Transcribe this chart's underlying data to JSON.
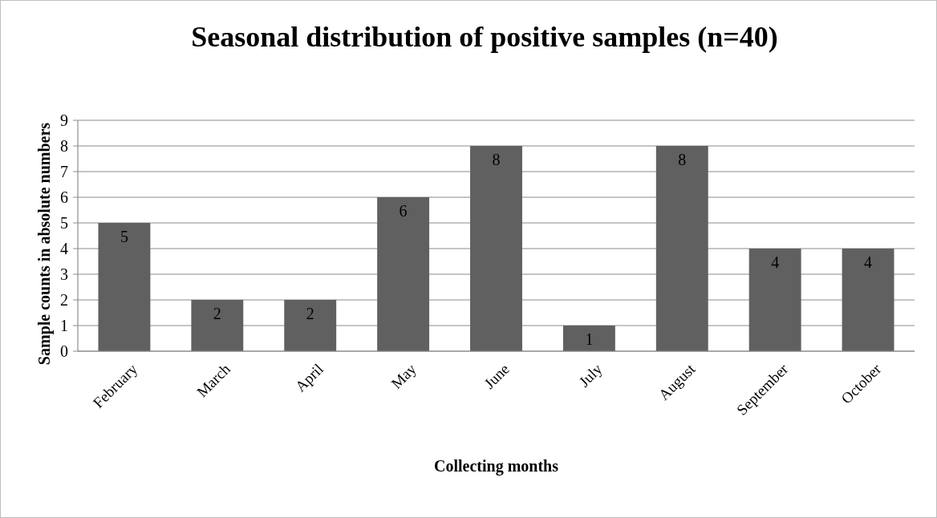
{
  "chart_data": {
    "type": "bar",
    "title": "Seasonal distribution of positive samples (n=40)",
    "xlabel": "Collecting months",
    "ylabel": "Sample counts in absolute numbers",
    "categories": [
      "February",
      "March",
      "April",
      "May",
      "June",
      "July",
      "August",
      "September",
      "October"
    ],
    "values": [
      5,
      2,
      2,
      6,
      8,
      1,
      8,
      4,
      4
    ],
    "color": "#606060",
    "ylim": [
      0,
      9
    ],
    "yticks": [
      0,
      1,
      2,
      3,
      4,
      5,
      6,
      7,
      8,
      9
    ],
    "grid": "y",
    "data_labels": true
  }
}
